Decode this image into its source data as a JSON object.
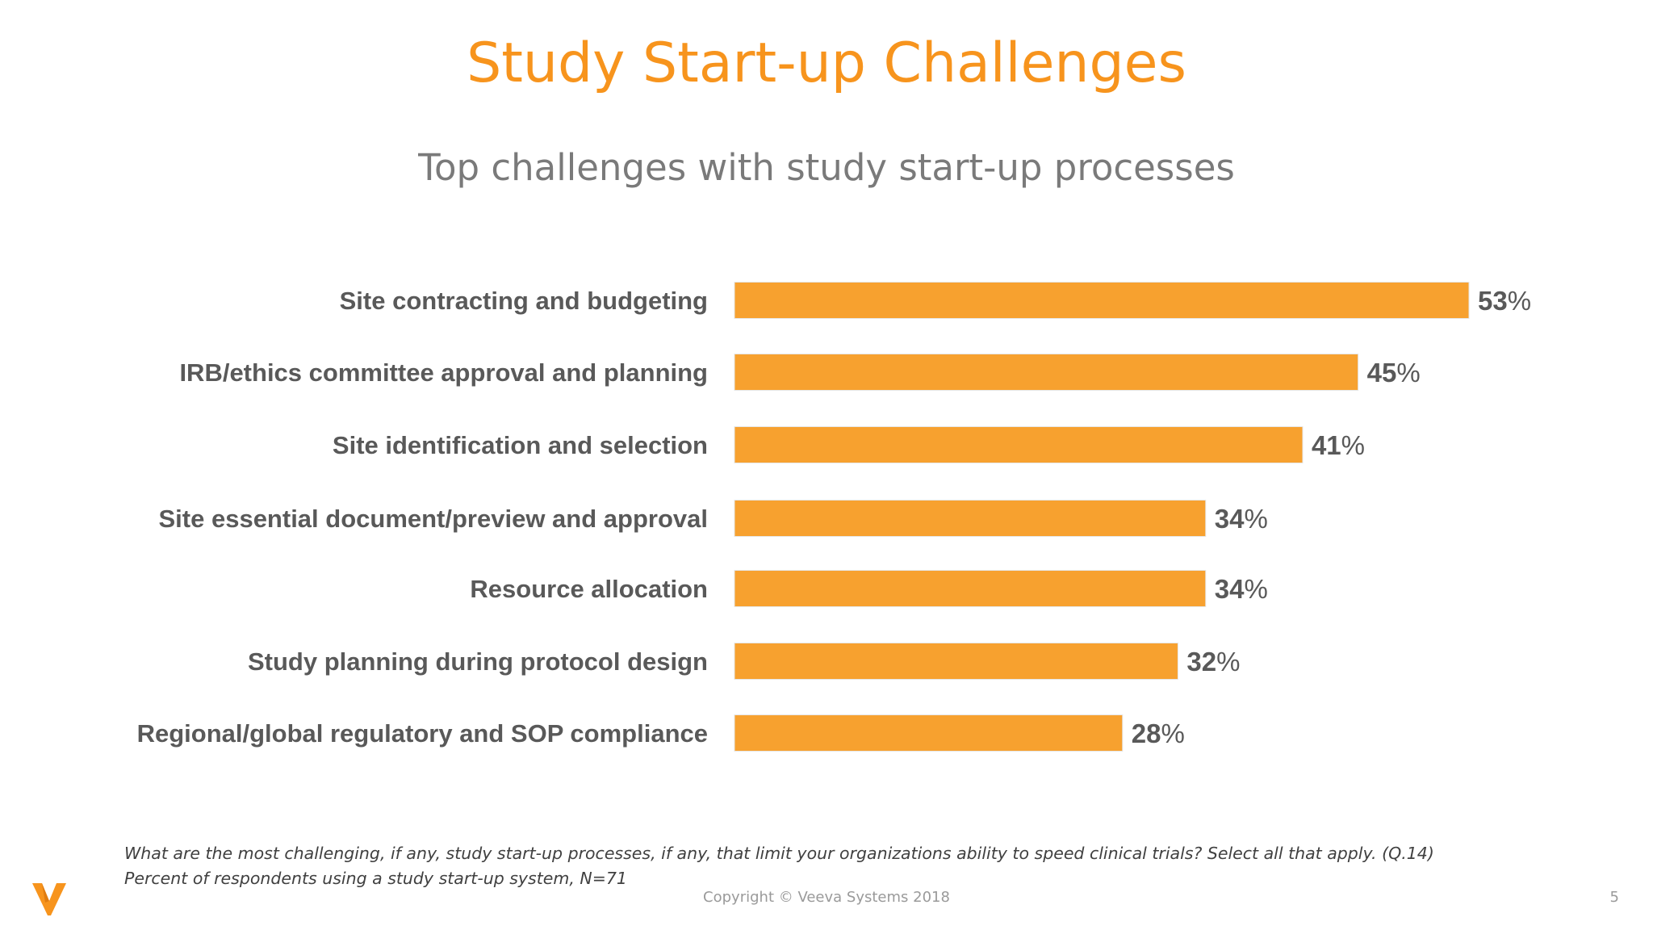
{
  "slide": {
    "title": "Study Start-up Challenges",
    "subtitle": "Top challenges with study start-up processes",
    "footnote_question": "What are the most challenging, if any, study start-up processes, if any, that limit your organizations ability to speed clinical trials?  Select all that apply. (Q.14)",
    "footnote_sample": "Percent of respondents using a study start-up system, N=71",
    "copyright": "Copyright © Veeva Systems 2018",
    "page_number": "5",
    "logo": "veeva-v-logo"
  },
  "colors": {
    "accent": "#f7941d",
    "bar": "#f7a12f",
    "label": "#595959",
    "value": "#595959"
  },
  "chart_data": {
    "type": "bar",
    "orientation": "horizontal",
    "categories": [
      "Site contracting and budgeting",
      "IRB/ethics committee approval and planning",
      "Site identification and selection",
      "Site essential document/preview and approval",
      "Resource allocation",
      "Study planning during protocol design",
      "Regional/global regulatory and SOP compliance"
    ],
    "values": [
      53,
      45,
      41,
      34,
      34,
      32,
      28
    ],
    "value_labels": [
      "53",
      "45",
      "41",
      "34",
      "34",
      "32",
      "28"
    ],
    "value_suffix": "%",
    "xlim": [
      0,
      53
    ],
    "grid": false,
    "legend": "none"
  }
}
